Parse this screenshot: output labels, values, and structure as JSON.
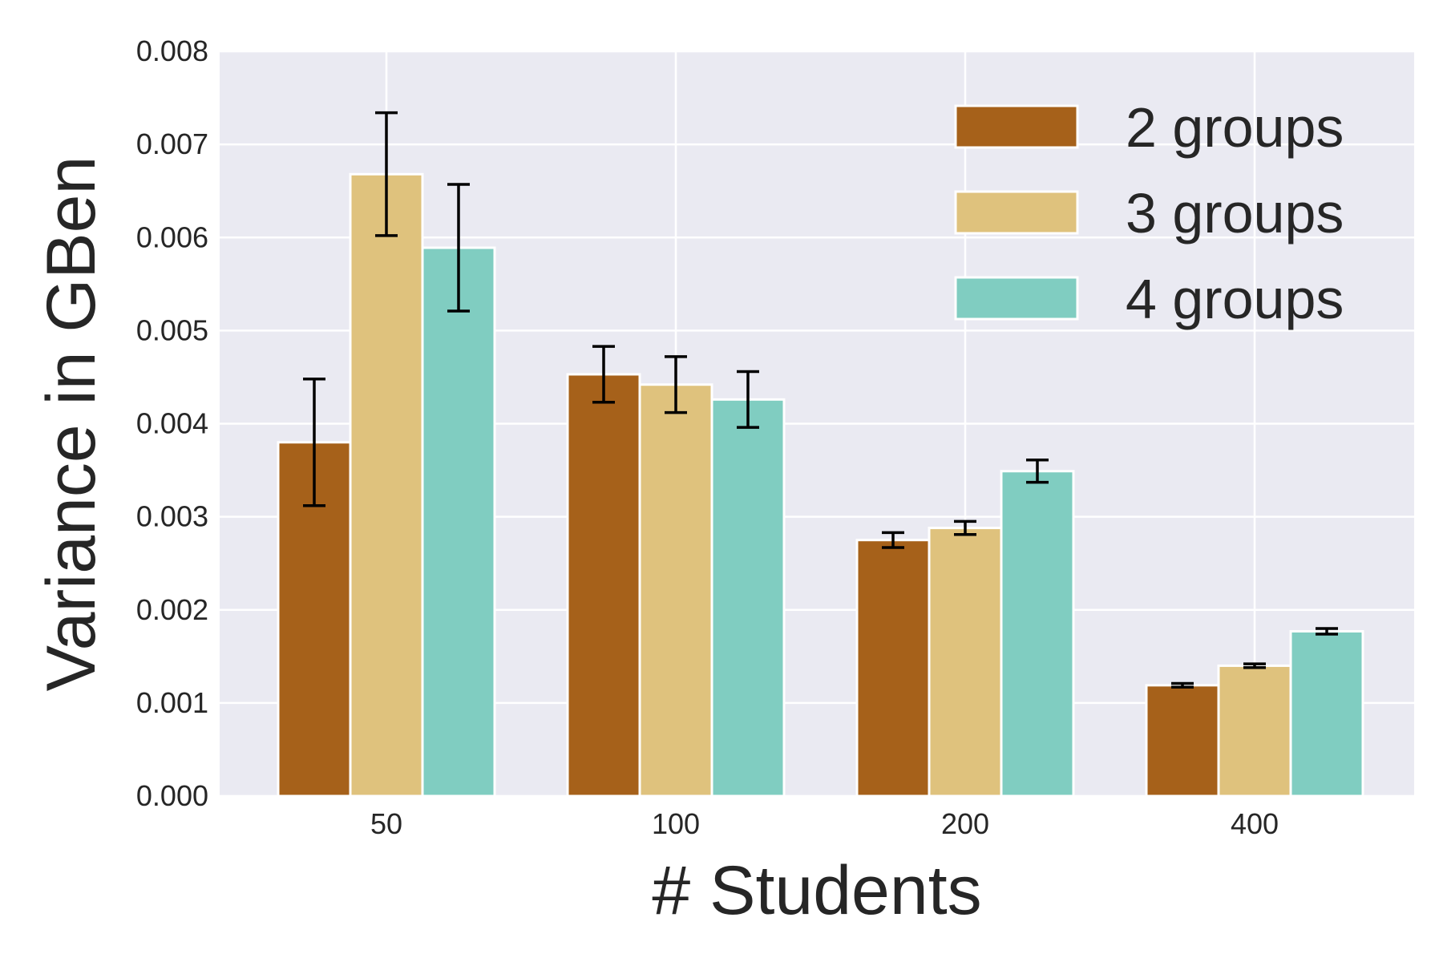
{
  "chart_data": {
    "type": "bar",
    "title": "",
    "xlabel": "# Students",
    "ylabel": "Variance in GBen",
    "categories": [
      "50",
      "100",
      "200",
      "400"
    ],
    "ylim": [
      0,
      0.008
    ],
    "yticks": [
      "0.000",
      "0.001",
      "0.002",
      "0.003",
      "0.004",
      "0.005",
      "0.006",
      "0.007",
      "0.008"
    ],
    "grid": true,
    "legend_position": "top-right",
    "background": "#eaeaf2",
    "series": [
      {
        "name": "2 groups",
        "color": "#a6611a",
        "values": [
          0.0038,
          0.00453,
          0.00275,
          0.00119
        ],
        "errors": [
          0.00068,
          0.0003,
          8e-05,
          2e-05
        ]
      },
      {
        "name": "3 groups",
        "color": "#dfc27d",
        "values": [
          0.00668,
          0.00442,
          0.00288,
          0.0014
        ],
        "errors": [
          0.00066,
          0.0003,
          7e-05,
          2e-05
        ]
      },
      {
        "name": "4 groups",
        "color": "#80cdc1",
        "values": [
          0.00589,
          0.00426,
          0.00349,
          0.00177
        ],
        "errors": [
          0.00068,
          0.0003,
          0.00012,
          3e-05
        ]
      }
    ]
  }
}
